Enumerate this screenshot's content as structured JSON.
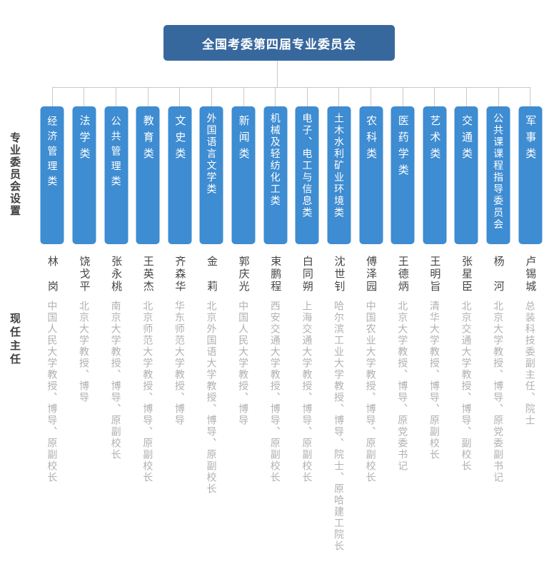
{
  "header": {
    "title": "全国考委第四届专业委员会"
  },
  "side_labels": {
    "committees": "专业委员会设置",
    "directors": "现任主任"
  },
  "colors": {
    "header_bg": "#37689D",
    "category_box_bg": "#3E8CD2",
    "connector_line": "#C9C9C9",
    "director_name": "#454545",
    "director_title": "#B1B1B1"
  },
  "columns": [
    {
      "category": "经济管理类",
      "director": "林　岗",
      "title": "中国人民大学教授、博导、原副校长"
    },
    {
      "category": "法学类",
      "director": "饶戈平",
      "title": "北京大学教授、博导"
    },
    {
      "category": "公共管理类",
      "director": "张永桃",
      "title": "南京大学教授、博导、原副校长"
    },
    {
      "category": "教育类",
      "director": "王英杰",
      "title": "北京师范大学教授、博导、原副校长"
    },
    {
      "category": "文史类",
      "director": "齐森华",
      "title": "华东师范大学教授、博导"
    },
    {
      "category": "外国语言文学类",
      "director": "金　莉",
      "title": "北京外国语大学教授、博导、原副校长"
    },
    {
      "category": "新闻类",
      "director": "郭庆光",
      "title": "中国人民大学教授、博导"
    },
    {
      "category": "机械及轻纺化工类",
      "director": "束鹏程",
      "title": "西安交通大学教授、博导、原副校长"
    },
    {
      "category": "电子、电工与信息类",
      "director": "白同朔",
      "title": "上海交通大学教授、博导、原副校长"
    },
    {
      "category": "土木水利矿业环境类",
      "director": "沈世钊",
      "title": "哈尔滨工业大学教授、博导、院士、原哈建工院长"
    },
    {
      "category": "农科类",
      "director": "傅泽园",
      "title": "中国农业大学教授、博导、原副校长"
    },
    {
      "category": "医药学类",
      "director": "王德炳",
      "title": "北京大学教授、博导、原党委书记"
    },
    {
      "category": "艺术类",
      "director": "王明旨",
      "title": "清华大学教授、博导、原副校长"
    },
    {
      "category": "交通类",
      "director": "张星臣",
      "title": "北京交通大学教授、博导、副校长"
    },
    {
      "category": "公共课课程指导委员会",
      "director": "杨　河",
      "title": "北京大学教授、博导、原党委副书记"
    },
    {
      "category": "军事类",
      "director": "卢锡城",
      "title": "总装科技委副主任、院士"
    }
  ]
}
